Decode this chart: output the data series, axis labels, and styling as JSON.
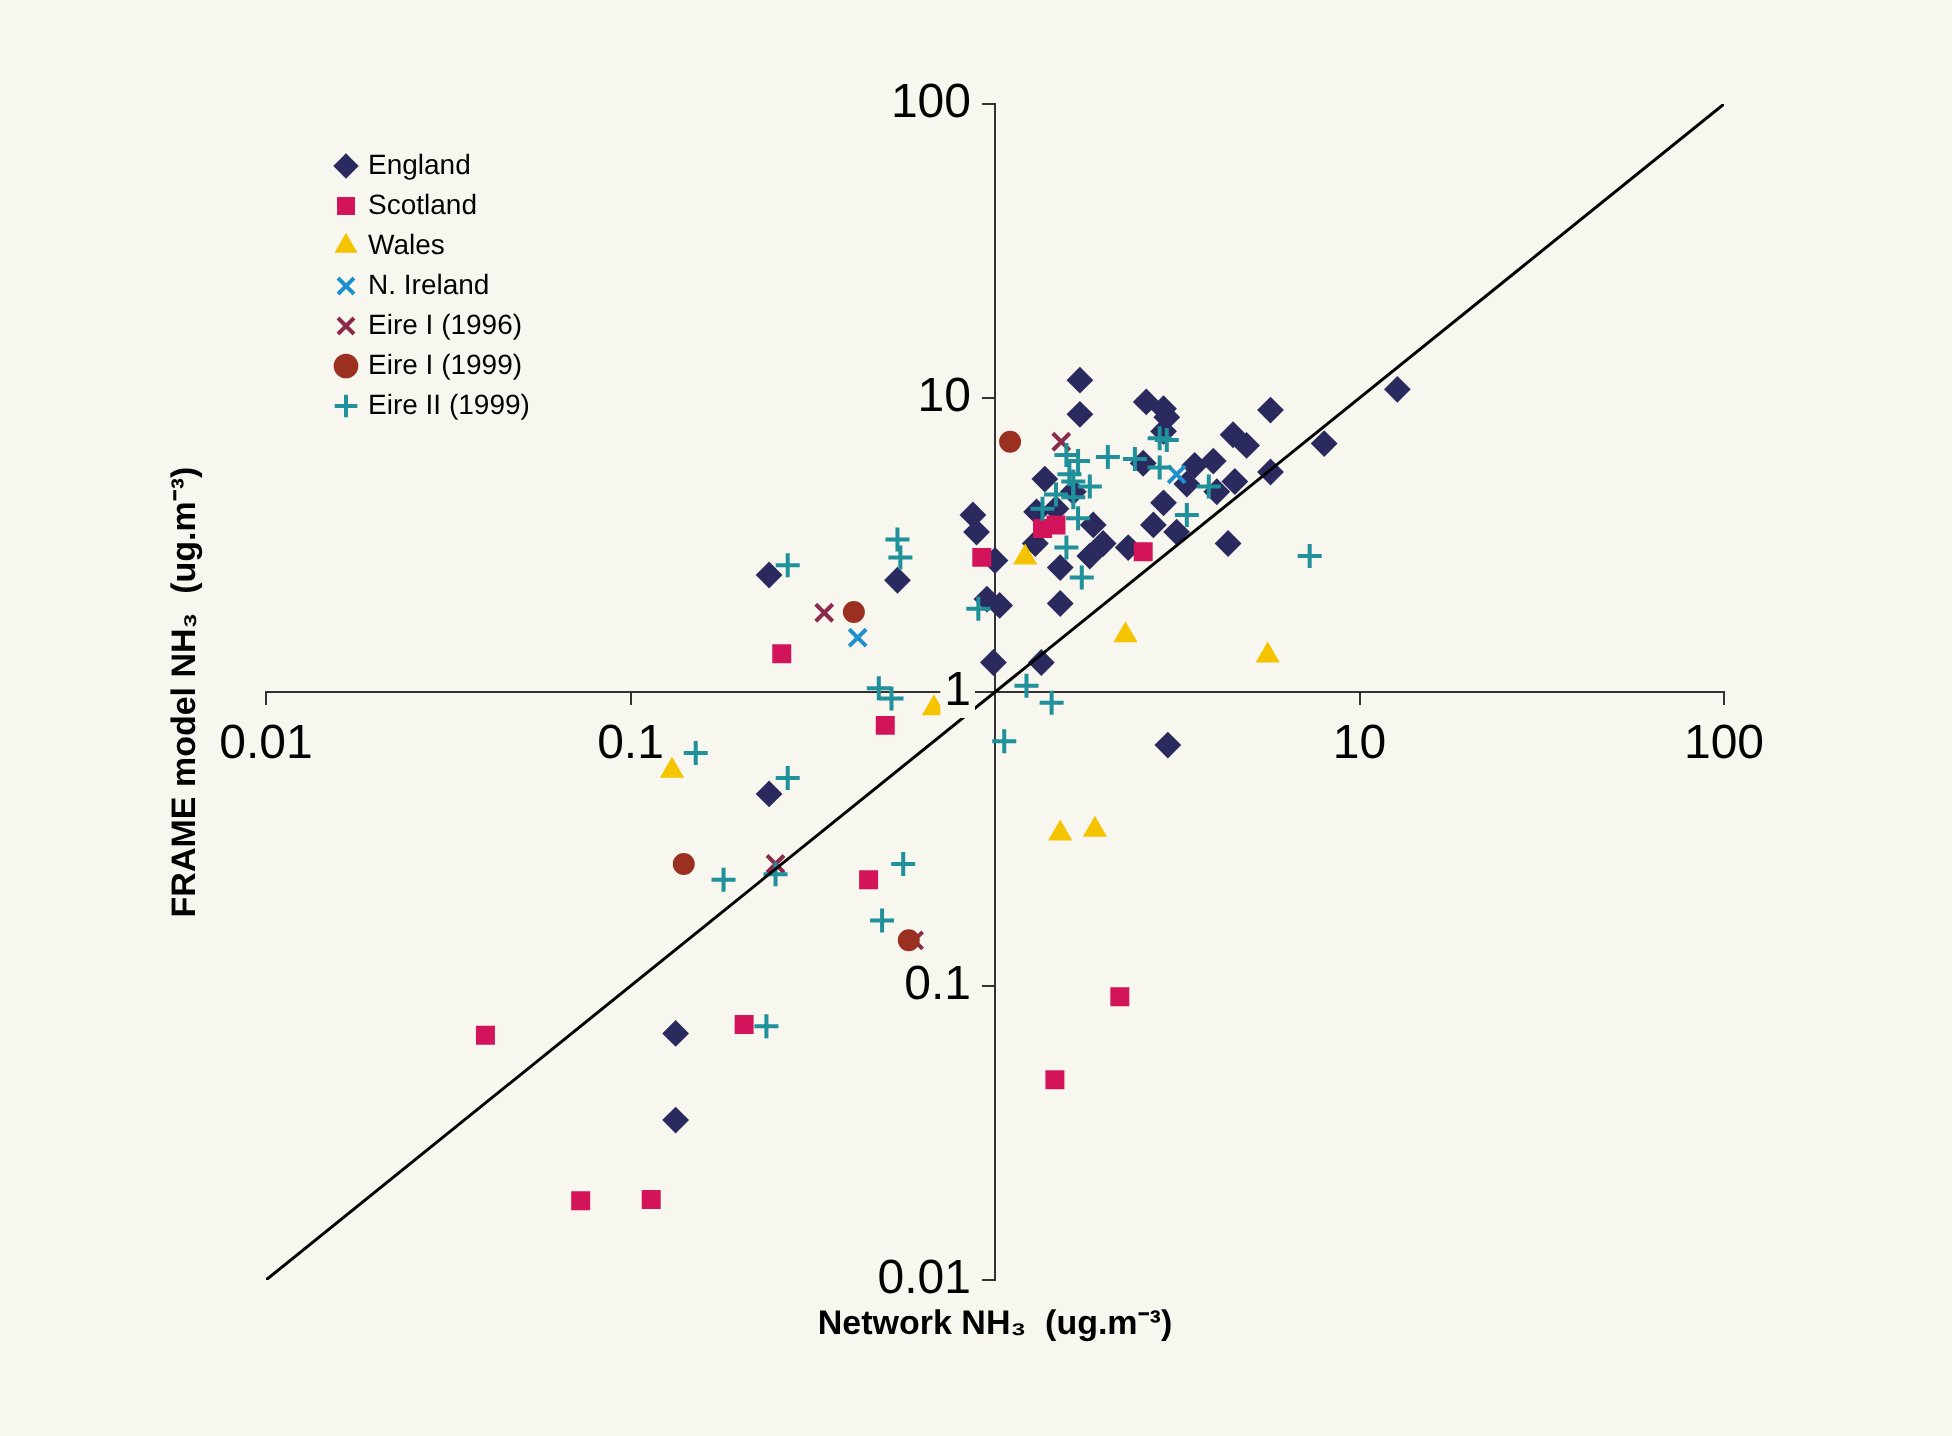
{
  "chart_data": {
    "type": "scatter",
    "xlabel": "Network NH₃  (ug.m⁻³)",
    "ylabel": "FRAME model NH₃  (ug.m⁻³)",
    "log": "xy",
    "xlim": [
      0.01,
      100
    ],
    "ylim": [
      0.01,
      100
    ],
    "xticks": [
      0.01,
      0.1,
      {
        "value": 1,
        "label": null
      },
      10,
      100
    ],
    "yticks": [
      0.01,
      0.1,
      1,
      10,
      100
    ],
    "grid": false,
    "legend": "top left",
    "series": [
      {
        "name": "England",
        "color": "#2b2a5e",
        "marker": "diamond",
        "x": [
          0.24,
          0.54,
          0.87,
          0.89,
          1.0,
          0.95,
          1.03,
          0.99,
          1.34,
          1.71,
          1.71,
          1.37,
          1.3,
          1.47,
          1.64,
          1.86,
          1.98,
          1.82,
          1.51,
          1.51,
          1.29,
          2.32,
          2.6,
          2.9,
          2.96,
          2.9,
          2.55,
          2.9,
          2.72,
          3.15,
          3.36,
          3.53,
          3.97,
          4.06,
          4.55,
          4.5,
          4.9,
          5.7,
          5.7,
          4.36,
          8.0,
          12.7,
          0.24,
          0.133,
          0.133,
          2.98
        ],
        "values": [
          2.5,
          2.4,
          4.0,
          3.5,
          2.8,
          2.07,
          1.97,
          1.26,
          1.26,
          11.5,
          8.8,
          5.3,
          4.1,
          4.2,
          4.8,
          3.7,
          3.2,
          2.9,
          2.65,
          2.0,
          3.2,
          3.1,
          9.7,
          9.2,
          8.6,
          7.7,
          6.0,
          4.4,
          3.7,
          3.5,
          5.1,
          5.9,
          6.1,
          4.8,
          5.2,
          7.5,
          6.9,
          9.1,
          5.6,
          3.2,
          7.0,
          10.7,
          0.45,
          0.069,
          0.035,
          0.66
        ]
      },
      {
        "name": "Scotland",
        "color": "#d4145a",
        "marker": "square",
        "x": [
          0.26,
          0.92,
          1.35,
          1.47,
          2.55,
          0.5,
          0.45,
          0.04,
          0.205,
          0.073,
          0.114,
          2.2,
          1.46
        ],
        "values": [
          1.35,
          2.87,
          3.6,
          3.7,
          3.0,
          0.77,
          0.23,
          0.068,
          0.074,
          0.0186,
          0.0188,
          0.092,
          0.048
        ]
      },
      {
        "name": "Wales",
        "color": "#f5c400",
        "marker": "triangle",
        "x": [
          1.21,
          2.28,
          5.6,
          0.13,
          0.68,
          1.51,
          1.88
        ],
        "values": [
          2.87,
          1.56,
          1.33,
          0.54,
          0.88,
          0.33,
          0.34
        ]
      },
      {
        "name": "N. Ireland",
        "color": "#1e90d0",
        "marker": "cross",
        "x": [
          0.42,
          3.15
        ],
        "values": [
          1.53,
          5.5
        ]
      },
      {
        "name": "Eire I (1996)",
        "color": "#8b2a4a",
        "marker": "cross",
        "x": [
          0.34,
          1.52,
          0.25,
          0.6
        ],
        "values": [
          1.86,
          7.1,
          0.26,
          0.143
        ]
      },
      {
        "name": "Eire I (1999)",
        "color": "#9b3020",
        "marker": "circle",
        "x": [
          1.1,
          0.41,
          0.14,
          0.58
        ],
        "values": [
          7.1,
          1.87,
          0.26,
          0.143
        ]
      },
      {
        "name": "Eire II (1999)",
        "color": "#20909a",
        "marker": "plus",
        "x": [
          0.27,
          0.54,
          0.55,
          0.9,
          1.57,
          1.69,
          1.6,
          1.64,
          1.82,
          1.47,
          1.35,
          1.64,
          1.69,
          1.57,
          1.73,
          2.04,
          2.42,
          2.83,
          2.96,
          2.83,
          3.86,
          3.36,
          7.3,
          1.22,
          0.48,
          0.52,
          0.151,
          0.27,
          0.56,
          0.18,
          0.25,
          0.49,
          0.236,
          1.43,
          1.06
        ],
        "values": [
          2.7,
          3.3,
          2.87,
          1.92,
          6.4,
          6.1,
          5.5,
          5.2,
          5.0,
          4.7,
          4.2,
          4.6,
          3.9,
          3.1,
          2.45,
          6.3,
          6.2,
          7.3,
          7.2,
          5.8,
          5.0,
          4.0,
          2.9,
          1.05,
          1.03,
          0.95,
          0.62,
          0.51,
          0.26,
          0.23,
          0.24,
          0.167,
          0.073,
          0.92,
          0.68
        ]
      },
      {
        "type": "line",
        "color": "#000000",
        "marker": "none",
        "x": [
          0.01,
          100
        ],
        "values": [
          0.01,
          100
        ]
      }
    ]
  }
}
